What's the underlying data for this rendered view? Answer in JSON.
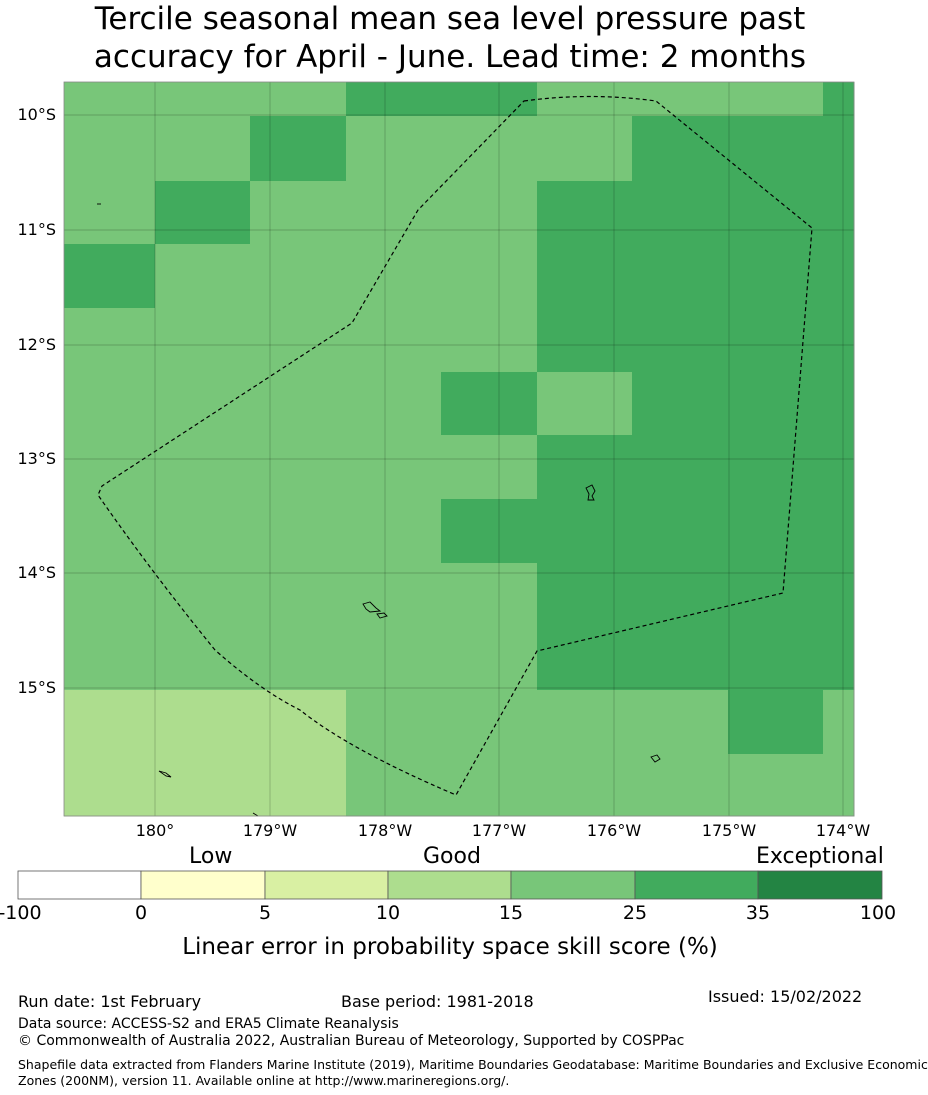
{
  "title": {
    "line1": "Tercile seasonal mean sea level pressure past",
    "line2": "accuracy for April - June. Lead time: 2 months"
  },
  "map": {
    "lat_labels": [
      "10°S",
      "11°S",
      "12°S",
      "13°S",
      "14°S",
      "15°S"
    ],
    "lon_labels": [
      "180°",
      "179°W",
      "178°W",
      "177°W",
      "176°W",
      "175°W",
      "174°W"
    ],
    "skill_grid_legend_classes": {
      "description": "",
      "rows": [
        [
          4,
          4,
          4,
          5,
          5,
          4,
          4,
          4,
          5
        ],
        [
          4,
          4,
          5,
          4,
          4,
          4,
          5,
          5,
          5
        ],
        [
          4,
          5,
          4,
          4,
          4,
          5,
          5,
          5,
          5
        ],
        [
          5,
          4,
          4,
          4,
          4,
          5,
          5,
          5,
          5
        ],
        [
          4,
          4,
          4,
          4,
          4,
          5,
          5,
          5,
          5
        ],
        [
          4,
          4,
          4,
          4,
          5,
          4,
          5,
          5,
          5
        ],
        [
          4,
          4,
          4,
          4,
          4,
          5,
          5,
          5,
          5
        ],
        [
          4,
          4,
          4,
          4,
          5,
          5,
          5,
          5,
          5
        ],
        [
          4,
          4,
          4,
          4,
          4,
          5,
          5,
          5,
          5
        ],
        [
          4,
          4,
          4,
          4,
          4,
          5,
          5,
          5,
          5
        ],
        [
          3,
          3,
          3,
          4,
          4,
          4,
          4,
          5,
          4
        ],
        [
          3,
          3,
          3,
          4,
          4,
          4,
          4,
          4,
          4
        ]
      ]
    }
  },
  "legend": {
    "categories": [
      "Low",
      "Good",
      "Exceptional"
    ],
    "ticks": [
      "-100",
      "0",
      "5",
      "10",
      "15",
      "25",
      "35",
      "100"
    ],
    "colors": [
      "#ffffff",
      "#ffffcc",
      "#d9f0a3",
      "#addd8e",
      "#78c679",
      "#41ab5d",
      "#238443"
    ],
    "title": "Linear error in probability space skill score (%)"
  },
  "footer": {
    "run_date": "Run date: 1st February",
    "base_period": "Base period: 1981-2018",
    "issued": "Issued: 15/02/2022",
    "data_source": "Data source: ACCESS-S2 and ERA5 Climate Reanalysis",
    "copyright": "© Commonwealth of Australia 2022, Australian Bureau of Meteorology, Supported by COSPPac",
    "shapefile_line1": "Shapefile data extracted from Flanders Marine Institute (2019), Maritime Boundaries Geodatabase: Maritime Boundaries and Exclusive Economic",
    "shapefile_line2": "Zones (200NM), version 11. Available online at http://www.marineregions.org/."
  }
}
